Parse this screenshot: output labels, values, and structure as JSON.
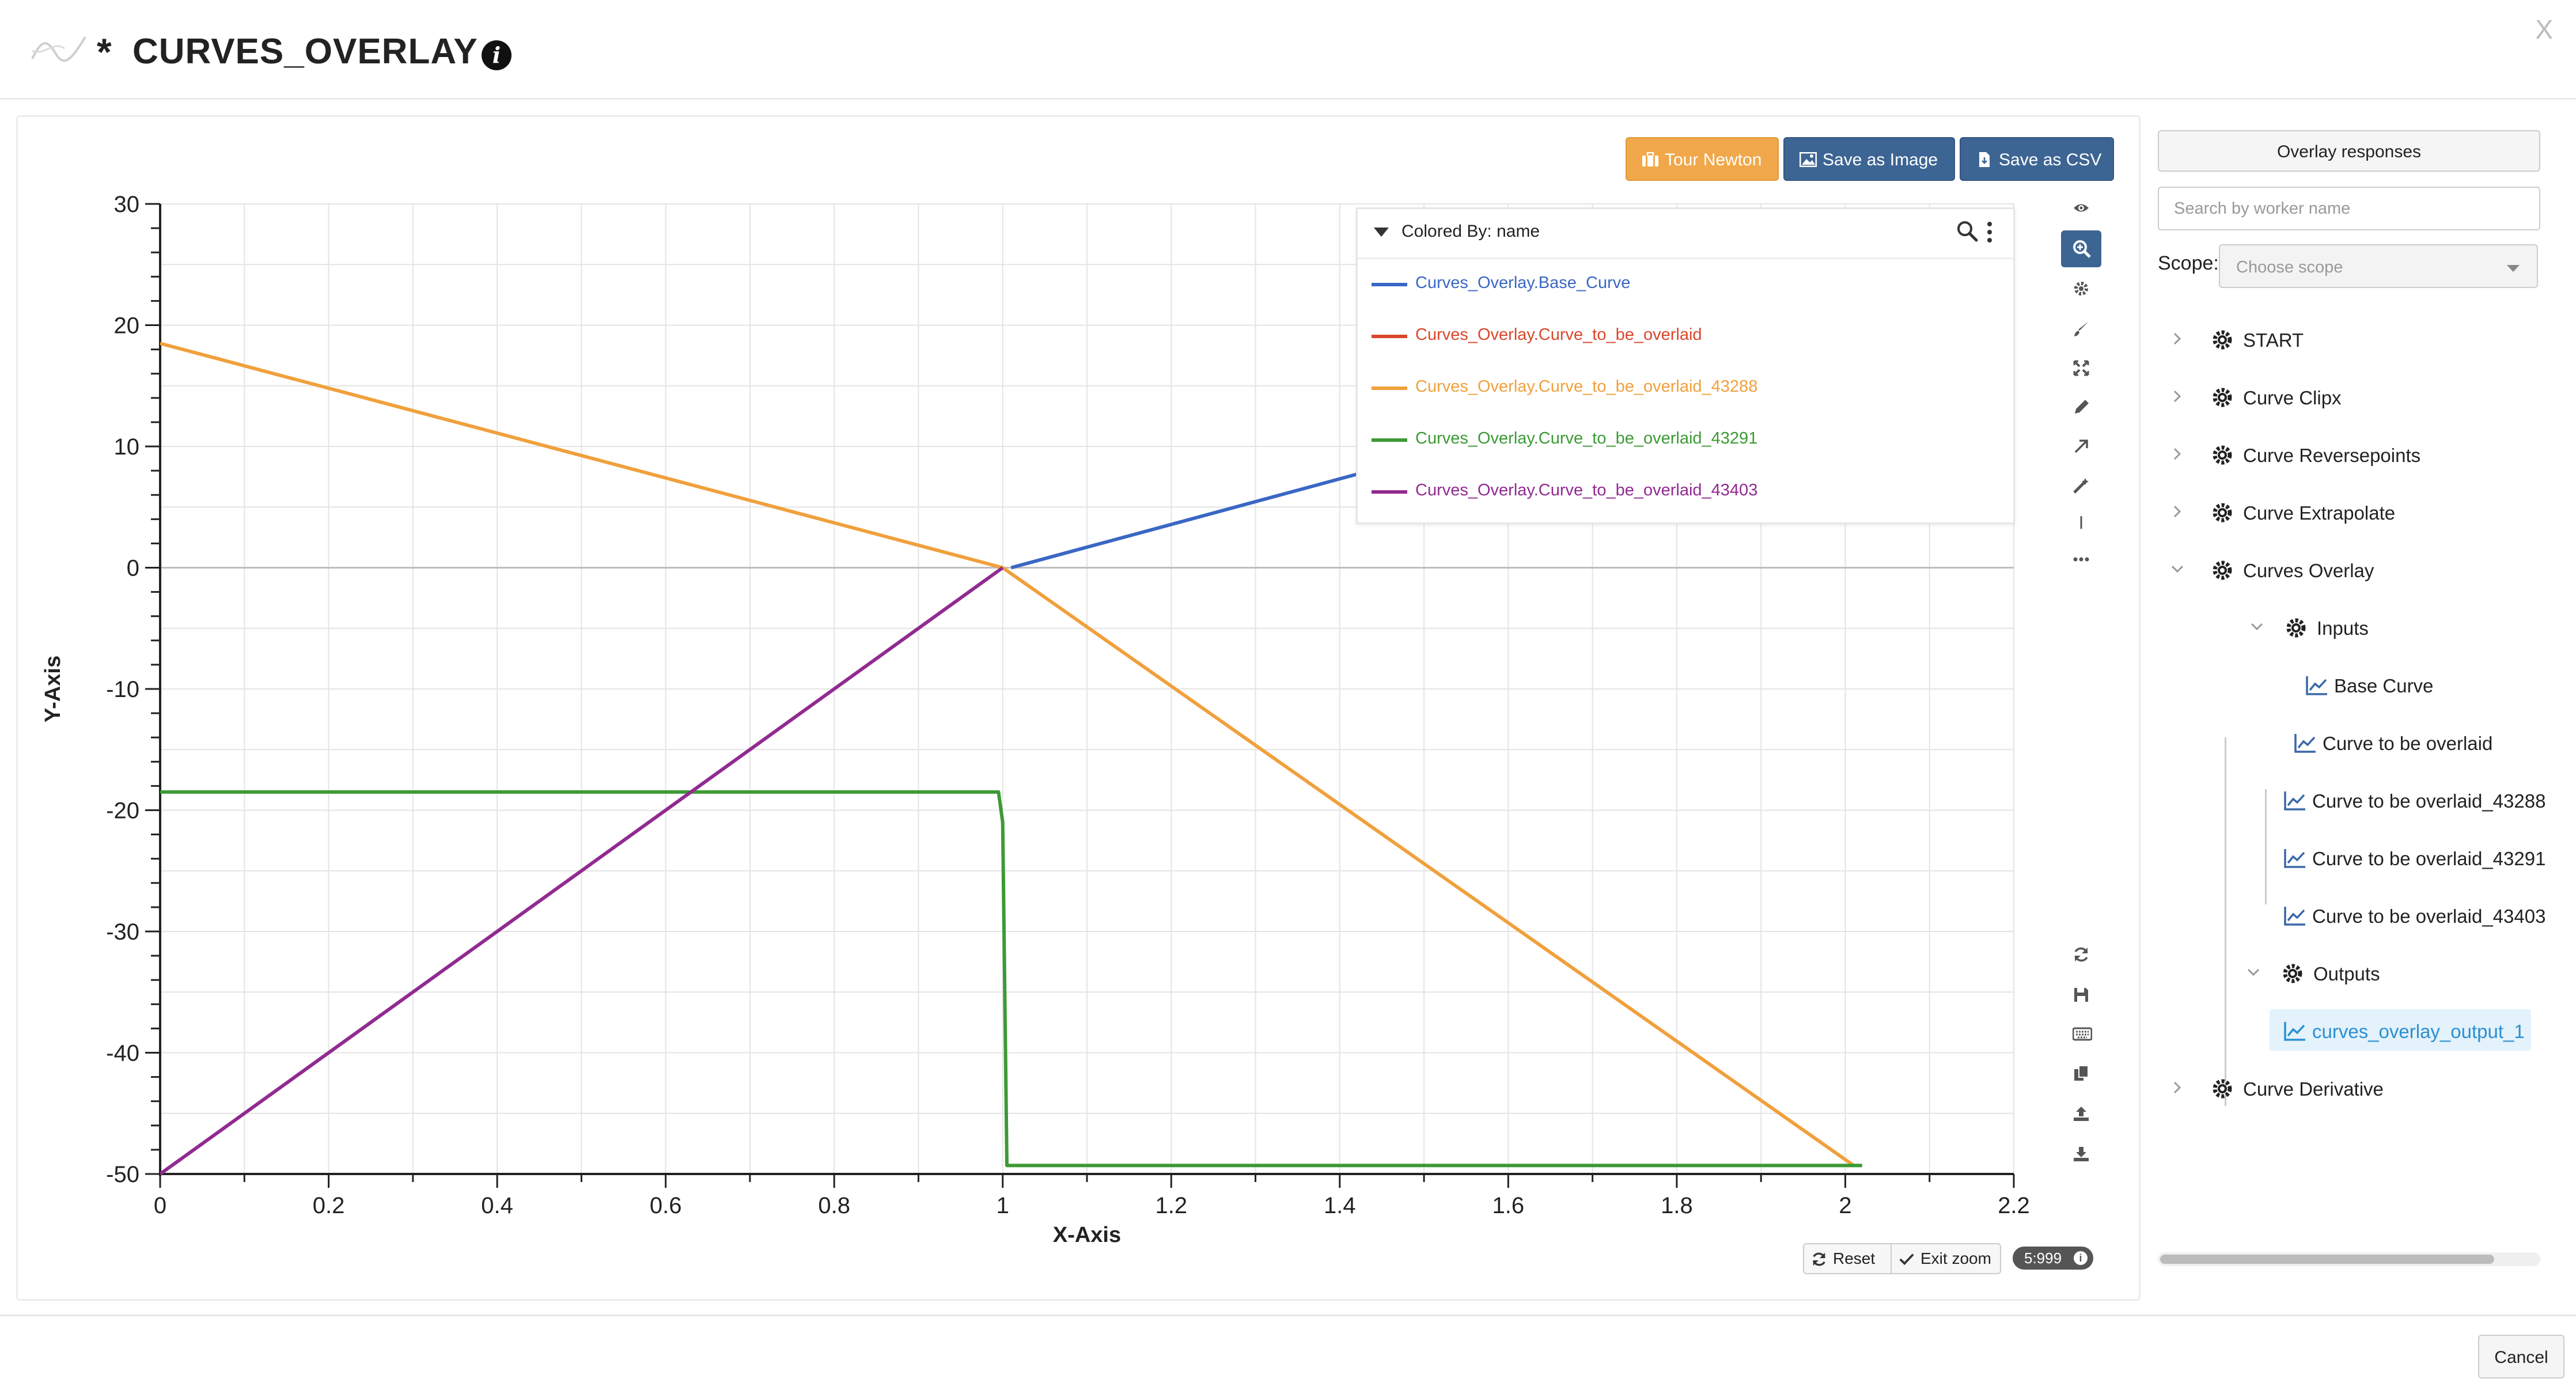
{
  "header": {
    "modified_marker": "*",
    "title": "CURVES_OVERLAY",
    "close_label": "X"
  },
  "toolbar": {
    "tour_label": "Tour Newton",
    "save_image_label": "Save as Image",
    "save_csv_label": "Save as CSV"
  },
  "legend": {
    "title": "Colored By: name",
    "items": [
      {
        "label": "Curves_Overlay.Base_Curve",
        "color": "#3a67c4"
      },
      {
        "label": "Curves_Overlay.Curve_to_be_overlaid",
        "color": "#d9472b"
      },
      {
        "label": "Curves_Overlay.Curve_to_be_overlaid_43288",
        "color": "#f0a03c"
      },
      {
        "label": "Curves_Overlay.Curve_to_be_overlaid_43291",
        "color": "#3c9a35"
      },
      {
        "label": "Curves_Overlay.Curve_to_be_overlaid_43403",
        "color": "#912a91"
      }
    ]
  },
  "zoom_controls": {
    "reset_label": "Reset",
    "exit_zoom_label": "Exit zoom",
    "sampling_label": "5:999"
  },
  "right_panel": {
    "overlay_button_label": "Overlay responses",
    "search_placeholder": "Search by worker name",
    "scope_label": "Scope:",
    "scope_placeholder": "Choose scope",
    "tree": {
      "start": "START",
      "curve_clipx": "Curve Clipx",
      "curve_reversepoints": "Curve Reversepoints",
      "curve_extrapolate": "Curve Extrapolate",
      "curves_overlay": "Curves Overlay",
      "inputs": "Inputs",
      "base_curve": "Base Curve",
      "curve_overlaid": "Curve to be overlaid",
      "curve_43288": "Curve to be overlaid_43288",
      "curve_43291": "Curve to be overlaid_43291",
      "curve_43403": "Curve to be overlaid_43403",
      "outputs": "Outputs",
      "output_1": "curves_overlay_output_1",
      "curve_derivative": "Curve Derivative"
    }
  },
  "footer": {
    "cancel_label": "Cancel"
  },
  "chart_data": {
    "type": "line",
    "title": "",
    "xlabel": "X-Axis",
    "ylabel": "Y-Axis",
    "xlim": [
      0,
      2.2
    ],
    "ylim": [
      -50,
      30
    ],
    "xticks": [
      0,
      0.2,
      0.4,
      0.6,
      0.8,
      1,
      1.2,
      1.4,
      1.6,
      1.8,
      2,
      2.2
    ],
    "yticks": [
      30,
      20,
      10,
      0,
      -10,
      -20,
      -30,
      -40,
      -50
    ],
    "grid": true,
    "legend_position": "top-right",
    "series": [
      {
        "name": "Curves_Overlay.Base_Curve",
        "color": "#3a67c4",
        "points": [
          [
            1.01,
            0
          ],
          [
            1.42,
            7.7
          ]
        ]
      },
      {
        "name": "Curves_Overlay.Curve_to_be_overlaid",
        "color": "#d9472b",
        "points": []
      },
      {
        "name": "Curves_Overlay.Curve_to_be_overlaid_43288",
        "color": "#f0a03c",
        "points": [
          [
            0,
            18.5
          ],
          [
            1,
            0
          ],
          [
            2.01,
            -49.3
          ]
        ]
      },
      {
        "name": "Curves_Overlay.Curve_to_be_overlaid_43291",
        "color": "#3c9a35",
        "points": [
          [
            0,
            -18.5
          ],
          [
            0.995,
            -18.5
          ],
          [
            1.0,
            -21
          ],
          [
            1.005,
            -49.3
          ],
          [
            2.02,
            -49.3
          ]
        ]
      },
      {
        "name": "Curves_Overlay.Curve_to_be_overlaid_43403",
        "color": "#912a91",
        "points": [
          [
            0,
            -50
          ],
          [
            1,
            0
          ]
        ]
      }
    ]
  }
}
